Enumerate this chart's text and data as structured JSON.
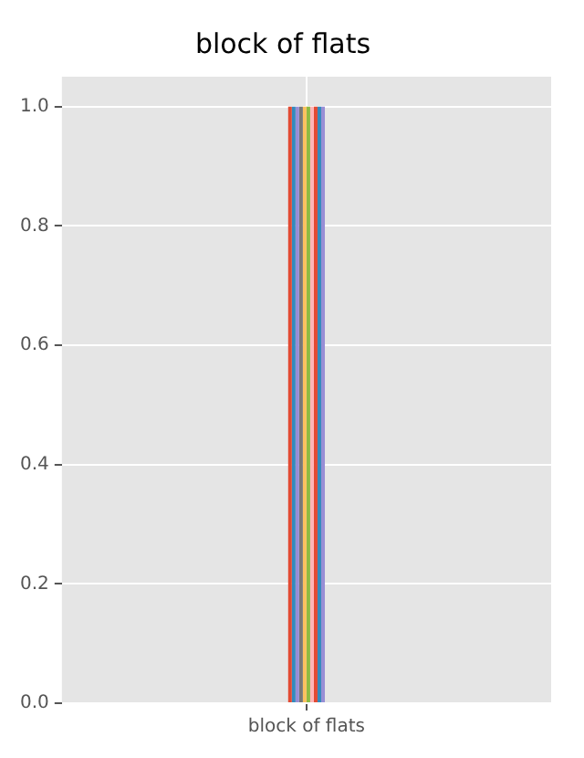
{
  "chart_data": {
    "type": "bar",
    "title": "block of flats",
    "categories": [
      "block of flats"
    ],
    "series": [
      {
        "color": "#e24a33",
        "values": [
          1
        ]
      },
      {
        "color": "#348abd",
        "values": [
          1
        ]
      },
      {
        "color": "#988ed5",
        "values": [
          1
        ]
      },
      {
        "color": "#777777",
        "values": [
          1
        ]
      },
      {
        "color": "#fbc15e",
        "values": [
          1
        ]
      },
      {
        "color": "#8eba42",
        "values": [
          1
        ]
      },
      {
        "color": "#ffb5b8",
        "values": [
          1
        ]
      },
      {
        "color": "#e24a33",
        "values": [
          1
        ]
      },
      {
        "color": "#348abd",
        "values": [
          1
        ]
      },
      {
        "color": "#988ed5",
        "values": [
          1
        ]
      }
    ],
    "ylim": [
      0,
      1.05
    ],
    "yticks": [
      {
        "value": 0,
        "label": "0.0"
      },
      {
        "value": 0.2,
        "label": "0.2"
      },
      {
        "value": 0.4,
        "label": "0.4"
      },
      {
        "value": 0.6,
        "label": "0.6"
      },
      {
        "value": 0.8,
        "label": "0.8"
      },
      {
        "value": 1,
        "label": "1.0"
      }
    ],
    "grid": true,
    "legend": false
  }
}
